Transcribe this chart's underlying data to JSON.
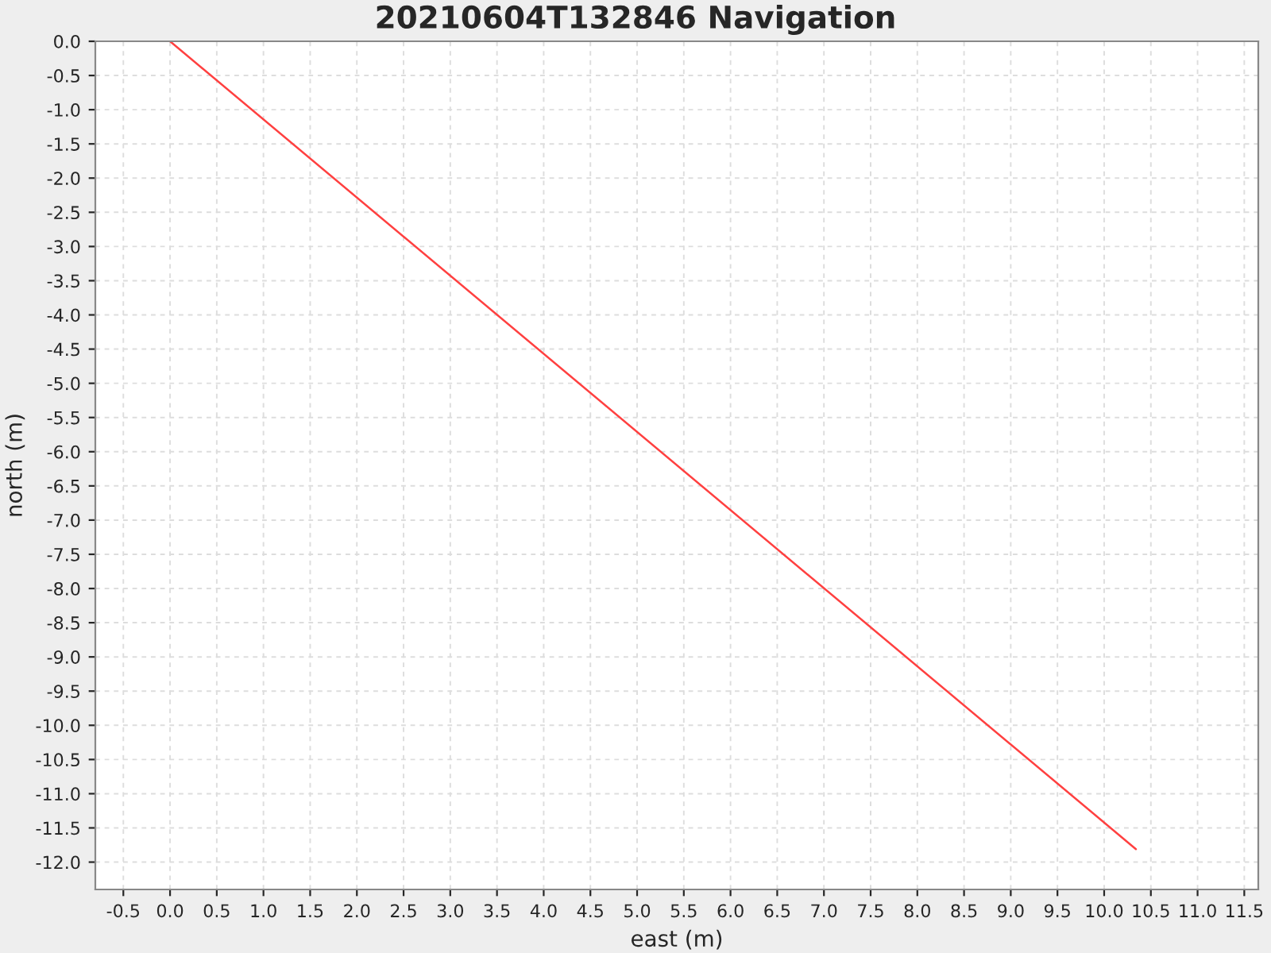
{
  "chart_data": {
    "type": "line",
    "title": "20210604T132846 Navigation",
    "xlabel": "east (m)",
    "ylabel": "north (m)",
    "series": [
      {
        "x": [
          0.0,
          10.34
        ],
        "values": [
          0.0,
          -11.81
        ],
        "color": "#ff4040"
      }
    ],
    "xlim": [
      -0.8,
      11.65
    ],
    "ylim": [
      -12.4,
      0.0
    ],
    "xticks": [
      -0.5,
      {
        "value": 0,
        "label": "0.0"
      },
      0.5,
      {
        "value": 1,
        "label": "1.0"
      },
      1.5,
      {
        "value": 2,
        "label": "2.0"
      },
      2.5,
      {
        "value": 3,
        "label": "3.0"
      },
      3.5,
      {
        "value": 4,
        "label": "4.0"
      },
      4.5,
      {
        "value": 5,
        "label": "5.0"
      },
      5.5,
      {
        "value": 6,
        "label": "6.0"
      },
      6.5,
      {
        "value": 7,
        "label": "7.0"
      },
      7.5,
      {
        "value": 8,
        "label": "8.0"
      },
      8.5,
      {
        "value": 9,
        "label": "9.0"
      },
      9.5,
      {
        "value": 10,
        "label": "10.0"
      },
      10.5,
      {
        "value": 11,
        "label": "11.0"
      },
      11.5
    ],
    "yticks": [
      {
        "value": 0,
        "label": "0.0"
      },
      -0.5,
      {
        "value": -1,
        "label": "-1.0"
      },
      -1.5,
      {
        "value": -2,
        "label": "-2.0"
      },
      -2.5,
      {
        "value": -3,
        "label": "-3.0"
      },
      -3.5,
      {
        "value": -4,
        "label": "-4.0"
      },
      -4.5,
      {
        "value": -5,
        "label": "-5.0"
      },
      -5.5,
      {
        "value": -6,
        "label": "-6.0"
      },
      -6.5,
      {
        "value": -7,
        "label": "-7.0"
      },
      -7.5,
      {
        "value": -8,
        "label": "-8.0"
      },
      -8.5,
      {
        "value": -9,
        "label": "-9.0"
      },
      -9.5,
      {
        "value": -10,
        "label": "-10.0"
      },
      -10.5,
      {
        "value": -11,
        "label": "-11.0"
      },
      -11.5,
      {
        "value": -12,
        "label": "-12.0"
      }
    ],
    "grid": true,
    "marker": "none",
    "line_style": "solid"
  }
}
